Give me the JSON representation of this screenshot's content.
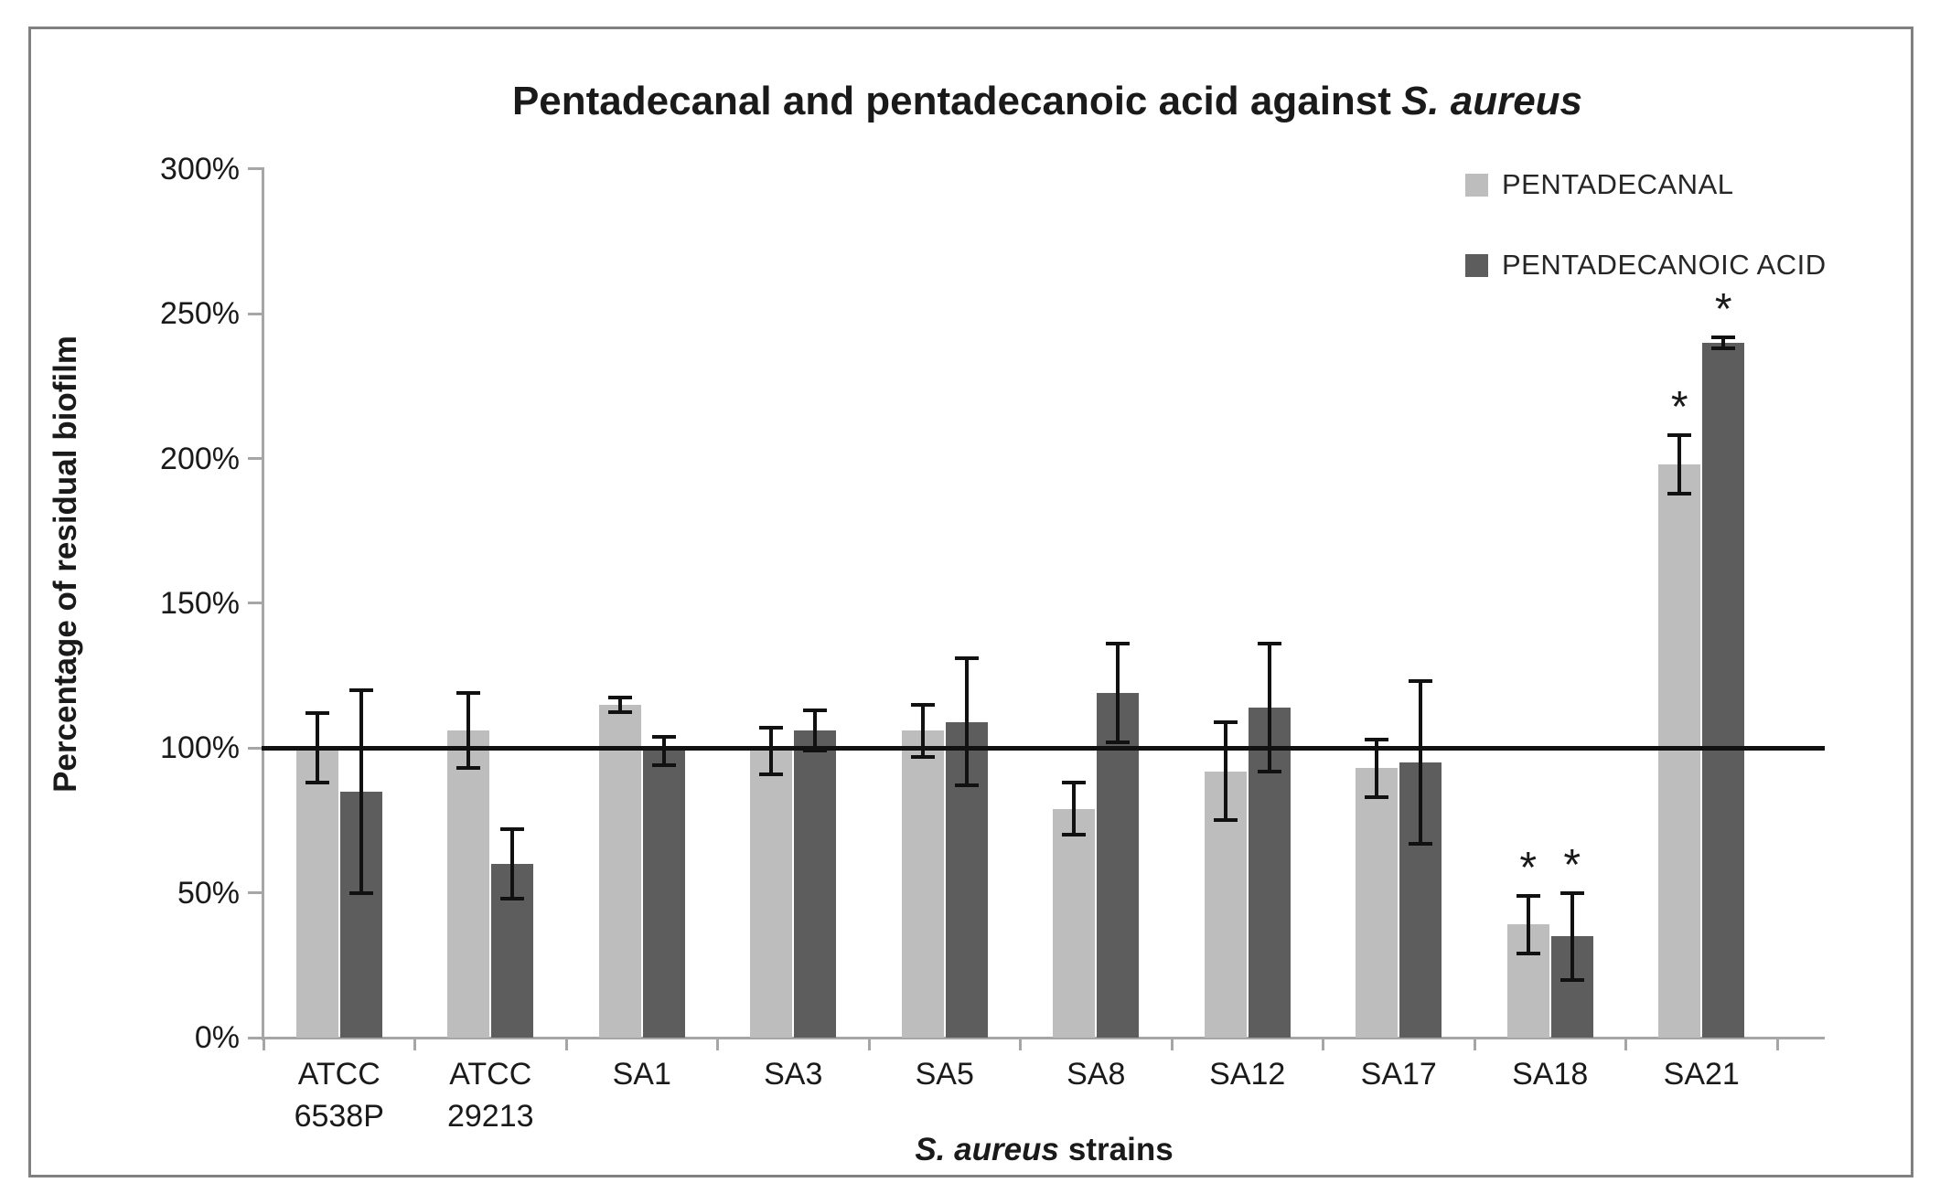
{
  "figure": {
    "title_regular": "Pentadecanal and pentadecanoic acid against",
    "title_italic": "S. aureus"
  },
  "legend": {
    "items": [
      {
        "label": "PENTADECANAL",
        "color": "#bdbdbd"
      },
      {
        "label": "PENTADECANOIC ACID",
        "color": "#5d5d5d"
      }
    ]
  },
  "y_axis": {
    "title": "Percentage of residual biofilm",
    "tick_values": [
      0,
      50,
      100,
      150,
      200,
      250,
      300
    ],
    "tick_labels": [
      "0%",
      "50%",
      "100%",
      "150%",
      "200%",
      "250%",
      "300%"
    ]
  },
  "x_axis": {
    "title_italic": "S. aureus",
    "title_regular": "strains"
  },
  "chart_data": {
    "type": "bar",
    "title": "Pentadecanal and pentadecanoic acid against S. aureus",
    "ylabel": "Percentage of residual biofilm",
    "xlabel": "S. aureus strains",
    "ylim": [
      0,
      300
    ],
    "y_unit": "%",
    "grid": false,
    "legend_position": "top-right",
    "ref_line": 100,
    "sig_marker": "*",
    "categories": [
      "ATCC 6538P",
      "ATCC 29213",
      "SA1",
      "SA3",
      "SA5",
      "SA8",
      "SA12",
      "SA17",
      "SA18",
      "SA21"
    ],
    "category_label_lines": [
      [
        "ATCC",
        "6538P"
      ],
      [
        "ATCC",
        "29213"
      ],
      [
        "SA1"
      ],
      [
        "SA3"
      ],
      [
        "SA5"
      ],
      [
        "SA8"
      ],
      [
        "SA12"
      ],
      [
        "SA17"
      ],
      [
        "SA18"
      ],
      [
        "SA21"
      ]
    ],
    "series": [
      {
        "name": "PENTADECANAL",
        "color": "#bdbdbd",
        "values": [
          100,
          106,
          115,
          99,
          106,
          79,
          92,
          93,
          39,
          198
        ],
        "errors": [
          12,
          13,
          2.5,
          8,
          9,
          9,
          17,
          10,
          10,
          10
        ],
        "significant": [
          false,
          false,
          false,
          false,
          false,
          false,
          false,
          false,
          true,
          true
        ]
      },
      {
        "name": "PENTADECANOIC ACID",
        "color": "#5d5d5d",
        "values": [
          85,
          60,
          99,
          106,
          109,
          119,
          114,
          95,
          35,
          240
        ],
        "errors": [
          35,
          12,
          5,
          7,
          22,
          17,
          22,
          28,
          15,
          2
        ],
        "significant": [
          false,
          false,
          false,
          false,
          false,
          false,
          false,
          false,
          true,
          true
        ]
      }
    ]
  }
}
